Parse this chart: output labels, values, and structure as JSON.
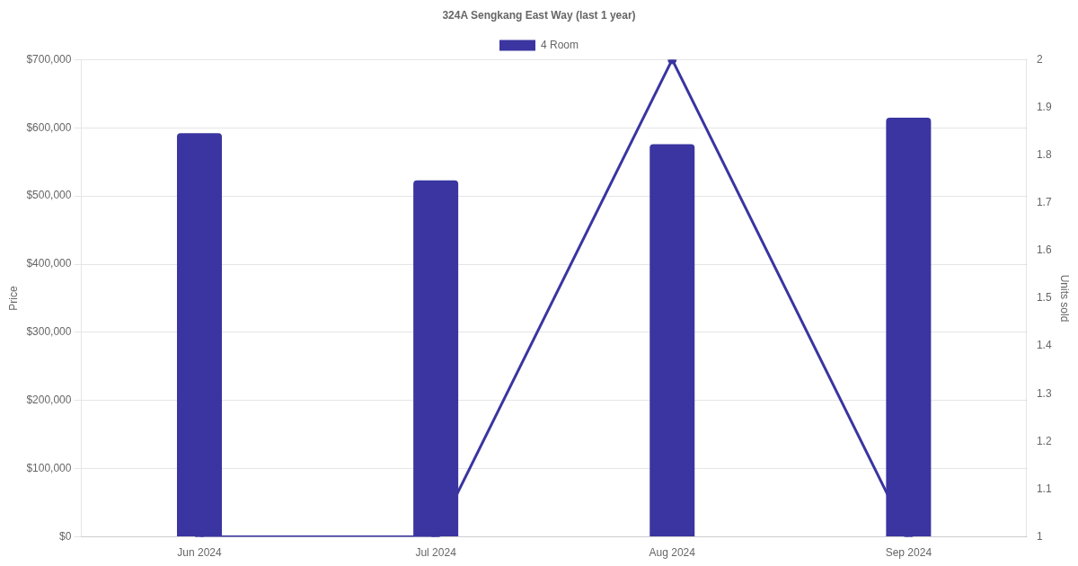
{
  "chart_data": {
    "type": "bar",
    "title": "324A Sengkang East Way (last 1 year)",
    "categories": [
      "Jun 2024",
      "Jul 2024",
      "Aug 2024",
      "Sep 2024"
    ],
    "series": [
      {
        "name": "4 Room",
        "color": "#3a35a0",
        "values": [
          592000,
          523000,
          576000,
          615000
        ]
      },
      {
        "type": "line",
        "axis": "y2",
        "color": "#3a35a0",
        "values": [
          1,
          1,
          2,
          1
        ]
      }
    ],
    "ylabel": "Price",
    "y2label": "Units sold",
    "ylim": [
      0,
      700000
    ],
    "yticks": [
      {
        "value": 0,
        "label": "$0"
      },
      {
        "value": 100000,
        "label": "$100,000"
      },
      {
        "value": 200000,
        "label": "$200,000"
      },
      {
        "value": 300000,
        "label": "$300,000"
      },
      {
        "value": 400000,
        "label": "$400,000"
      },
      {
        "value": 500000,
        "label": "$500,000"
      },
      {
        "value": 600000,
        "label": "$600,000"
      },
      {
        "value": 700000,
        "label": "$700,000"
      }
    ],
    "y2lim": [
      1,
      2
    ],
    "y2ticks": [
      1,
      1.1,
      1.2,
      1.3,
      1.4,
      1.5,
      1.6,
      1.7,
      1.8,
      1.9,
      2
    ],
    "grid": "y",
    "legend": "top",
    "marker": "circle",
    "line_style": "solid"
  }
}
